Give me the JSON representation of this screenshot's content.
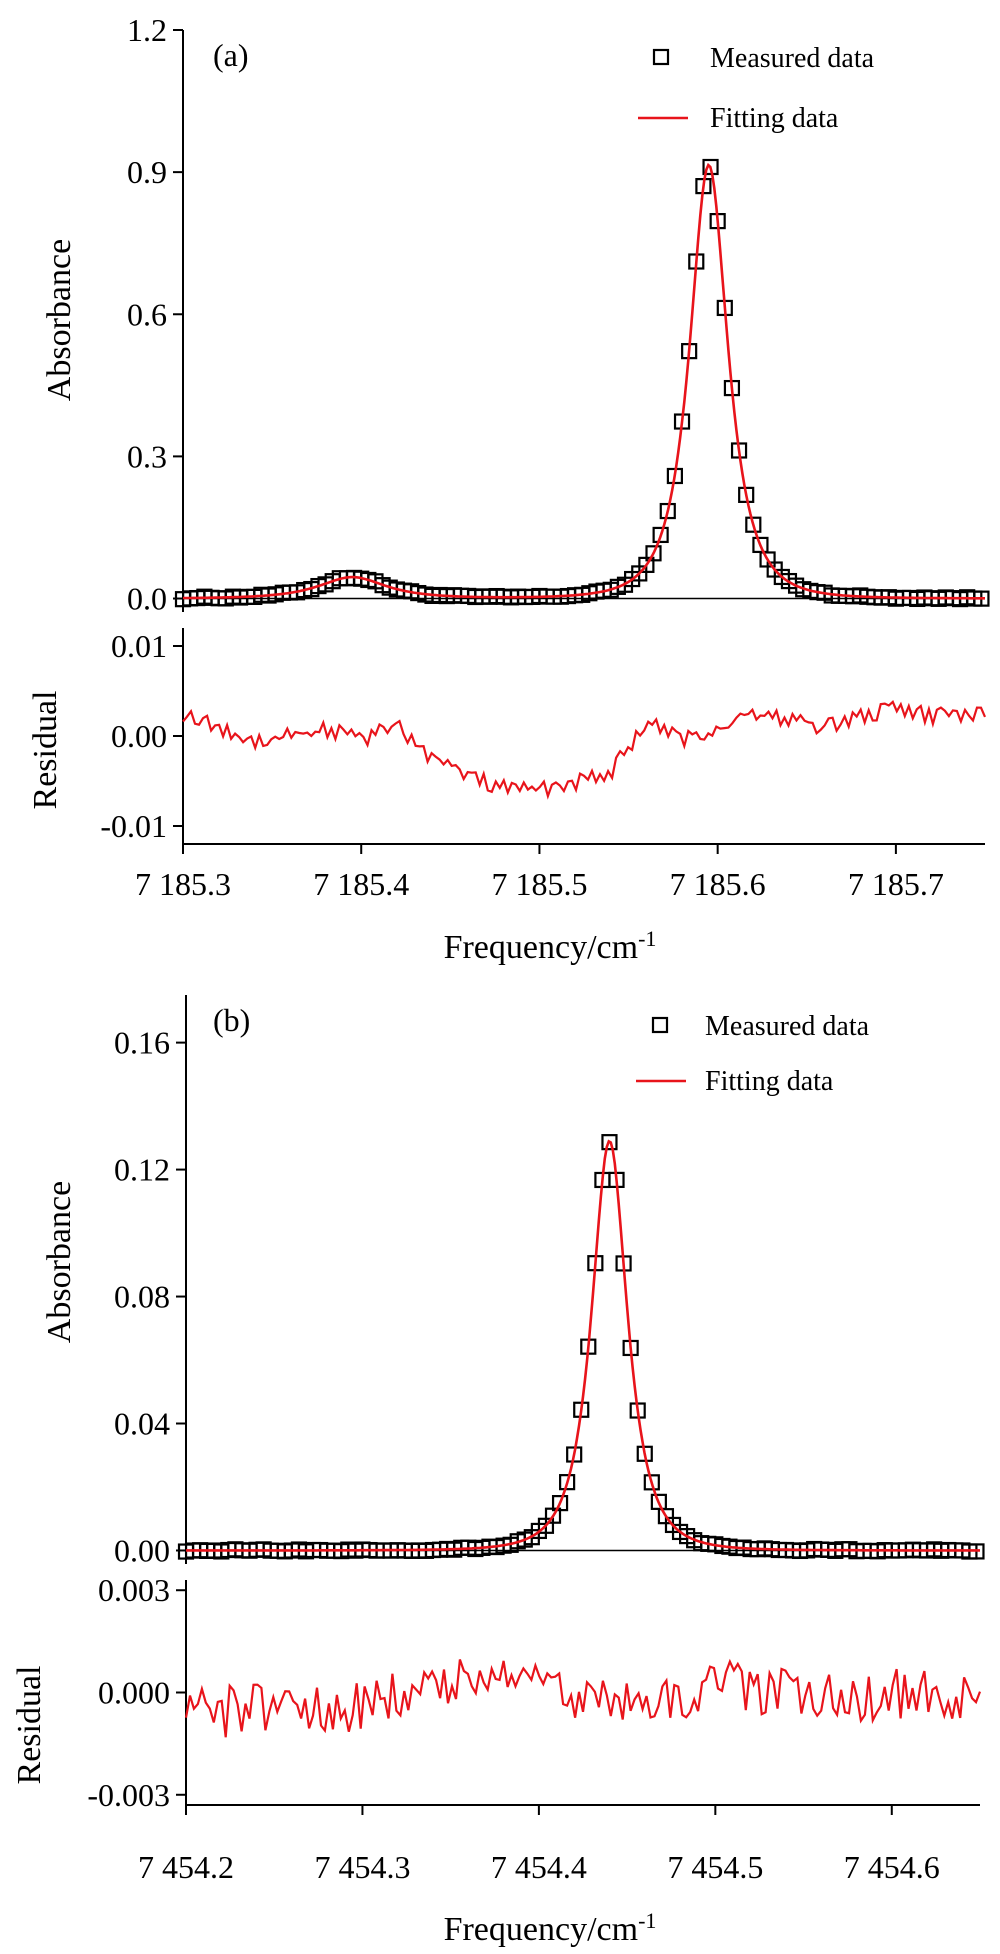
{
  "chart_data": [
    {
      "type": "line",
      "panel_label": "(a)",
      "ylabel": "Absorbance",
      "xlim": [
        7185.3,
        7185.75
      ],
      "ylim": [
        -0.02,
        1.2
      ],
      "yticks": [
        "0.0",
        "0.3",
        "0.6",
        "0.9",
        "1.2"
      ],
      "ytick_values": [
        0.0,
        0.3,
        0.6,
        0.9,
        1.2
      ],
      "legend": {
        "placement": "top-right",
        "entries": [
          "Measured data",
          "Fitting data"
        ]
      },
      "peaks": [
        {
          "center": 7185.595,
          "amplitude": 0.915,
          "hwhm": 0.0125
        },
        {
          "center": 7185.395,
          "amplitude": 0.045,
          "hwhm": 0.022
        }
      ],
      "series": [
        {
          "name": "Measured data",
          "style": "square-markers",
          "x_start": 7185.3,
          "x_end": 7185.75,
          "step": 0.004
        },
        {
          "name": "Fitting data",
          "style": "line",
          "color": "#e8141b"
        }
      ],
      "residual": {
        "ylabel": "Residual",
        "ylim": [
          -0.012,
          0.012
        ],
        "yticks": [
          "-0.01",
          "0.00",
          "0.01"
        ],
        "ytick_values": [
          -0.01,
          0.0,
          0.01
        ],
        "x": [
          7185.3,
          7185.32,
          7185.34,
          7185.36,
          7185.38,
          7185.4,
          7185.42,
          7185.44,
          7185.46,
          7185.48,
          7185.5,
          7185.52,
          7185.54,
          7185.56,
          7185.58,
          7185.6,
          7185.62,
          7185.64,
          7185.66,
          7185.68,
          7185.7,
          7185.72,
          7185.75
        ],
        "y": [
          0.0025,
          0.0008,
          -0.0005,
          0.0002,
          0.0008,
          -0.0004,
          0.0012,
          -0.0025,
          -0.0045,
          -0.0058,
          -0.006,
          -0.0052,
          -0.004,
          0.0015,
          -0.0005,
          0.0008,
          0.0028,
          0.0018,
          0.001,
          0.0022,
          0.003,
          0.0022,
          0.0025
        ],
        "noise_amplitude": 0.0009
      },
      "xticks": [
        "7 185.3",
        "7 185.4",
        "7 185.5",
        "7 185.6",
        "7 185.7"
      ],
      "xtick_values": [
        7185.3,
        7185.4,
        7185.5,
        7185.6,
        7185.7
      ],
      "xlabel": "Frequency/cm",
      "xlabel_superscript": "-1"
    },
    {
      "type": "line",
      "panel_label": "(b)",
      "ylabel": "Absorbance",
      "xlim": [
        7454.2,
        7454.65
      ],
      "ylim": [
        -0.003,
        0.175
      ],
      "yticks": [
        "0.00",
        "0.04",
        "0.08",
        "0.12",
        "0.16"
      ],
      "ytick_values": [
        0.0,
        0.04,
        0.08,
        0.12,
        0.16
      ],
      "legend": {
        "placement": "top-right",
        "entries": [
          "Measured data",
          "Fitting data"
        ]
      },
      "peaks": [
        {
          "center": 7454.44,
          "amplitude": 0.129,
          "hwhm": 0.0118
        }
      ],
      "series": [
        {
          "name": "Measured data",
          "style": "square-markers",
          "x_start": 7454.2,
          "x_end": 7454.65,
          "step": 0.004
        },
        {
          "name": "Fitting data",
          "style": "line",
          "color": "#e8141b"
        }
      ],
      "residual": {
        "ylabel": "Residual",
        "ylim": [
          -0.0033,
          0.0033
        ],
        "yticks": [
          "-0.003",
          "0.000",
          "0.003"
        ],
        "ytick_values": [
          -0.003,
          0.0,
          0.003
        ],
        "x": [
          7454.2,
          7454.22,
          7454.24,
          7454.26,
          7454.28,
          7454.3,
          7454.32,
          7454.34,
          7454.36,
          7454.38,
          7454.4,
          7454.42,
          7454.44,
          7454.46,
          7454.48,
          7454.5,
          7454.52,
          7454.54,
          7454.56,
          7454.58,
          7454.6,
          7454.62,
          7454.65
        ],
        "y": [
          0.0,
          -0.0006,
          -0.0004,
          -0.0003,
          -0.0005,
          -0.0004,
          0.0,
          0.0002,
          0.0003,
          0.0007,
          0.0009,
          -0.0006,
          0.0,
          -0.0002,
          -0.0001,
          0.0003,
          0.0001,
          0.0,
          -0.0002,
          -0.0003,
          0.0,
          -0.0001,
          -0.0002
        ],
        "noise_amplitude": 0.00075
      },
      "xticks": [
        "7 454.2",
        "7 454.3",
        "7 454.4",
        "7 454.5",
        "7 454.6"
      ],
      "xtick_values": [
        7454.2,
        7454.3,
        7454.4,
        7454.5,
        7454.6
      ],
      "xlabel": "Frequency/cm",
      "xlabel_superscript": "-1"
    }
  ]
}
